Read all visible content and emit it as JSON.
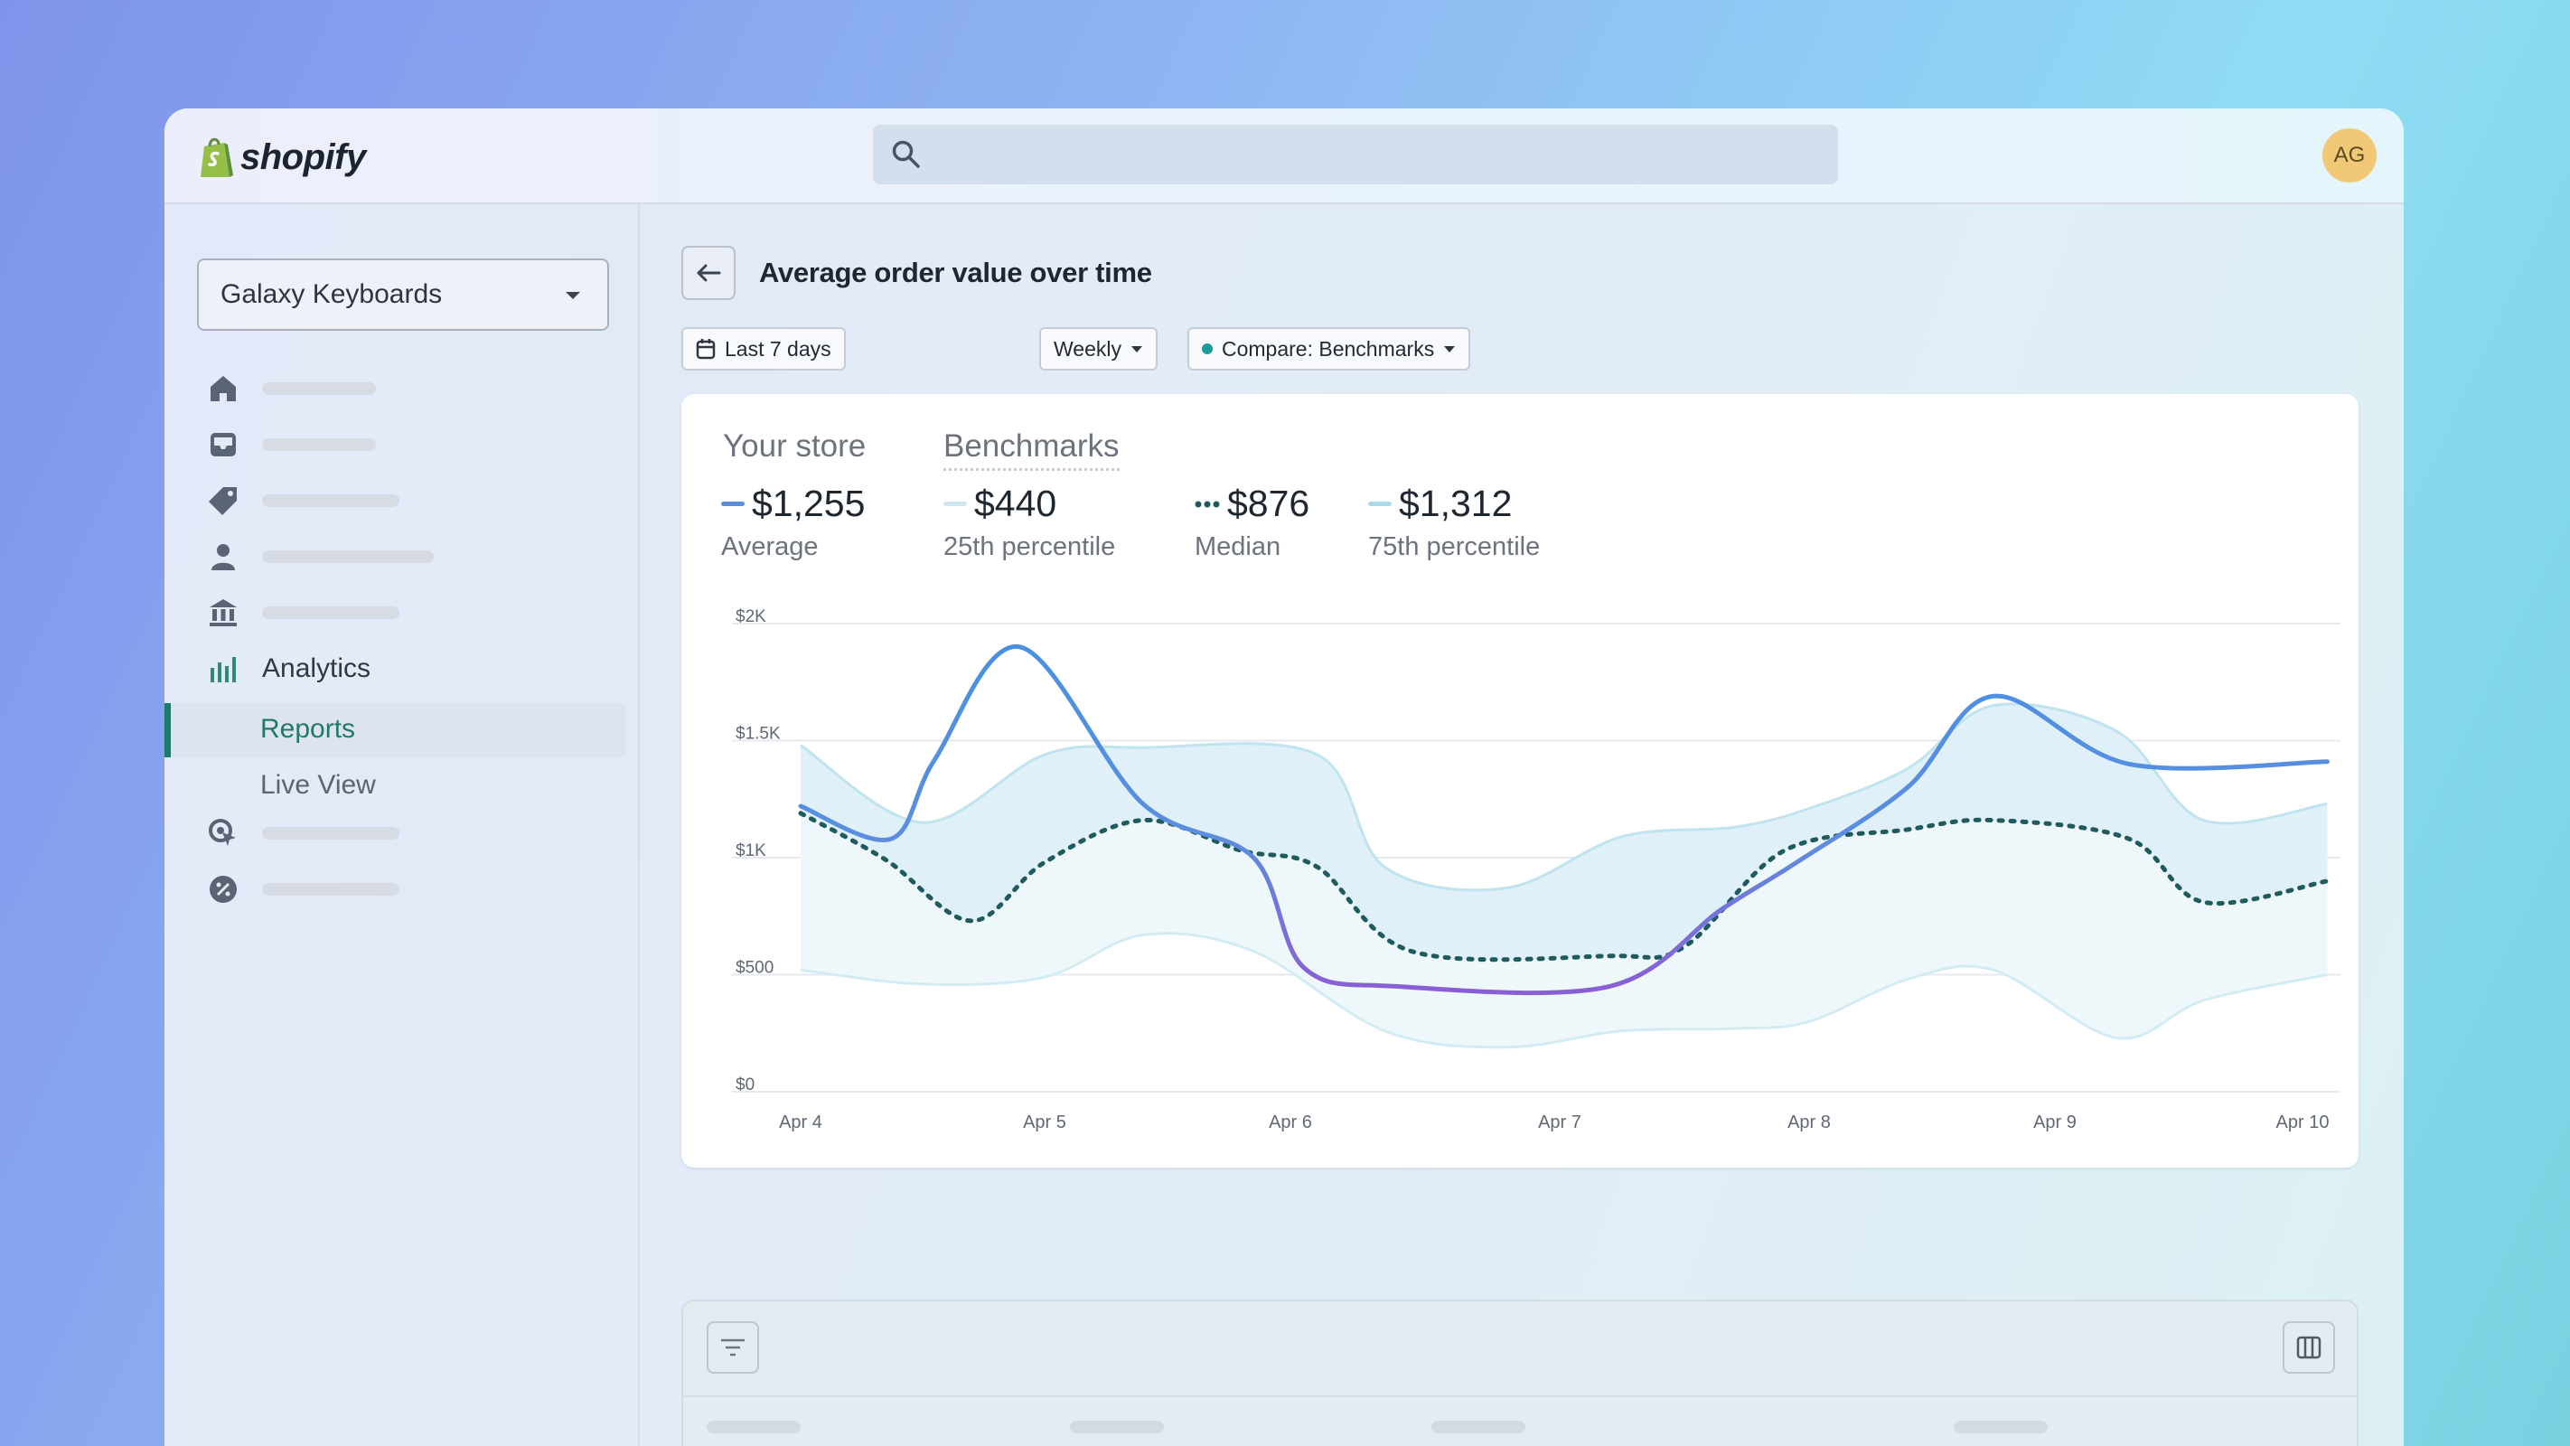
{
  "app": {
    "brand": "shopify",
    "avatar_initials": "AG",
    "search_placeholder": ""
  },
  "sidebar": {
    "store_name": "Galaxy Keyboards",
    "items": [
      {
        "icon": "home-icon"
      },
      {
        "icon": "inbox-icon"
      },
      {
        "icon": "tag-icon"
      },
      {
        "icon": "person-icon"
      },
      {
        "icon": "bank-icon"
      },
      {
        "icon": "analytics-icon",
        "label": "Analytics"
      },
      {
        "label": "Reports",
        "active": true
      },
      {
        "label": "Live View"
      },
      {
        "icon": "marketing-icon"
      },
      {
        "icon": "discount-icon"
      }
    ]
  },
  "page": {
    "title": "Average order value over time"
  },
  "filters": {
    "date_range": "Last 7 days",
    "interval": "Weekly",
    "compare": "Compare: Benchmarks"
  },
  "tabs": {
    "store": "Your store",
    "benchmarks": "Benchmarks"
  },
  "metrics": [
    {
      "value": "$1,255",
      "label": "Average",
      "color": "#5b8ee0"
    },
    {
      "value": "$440",
      "label": "25th percentile",
      "color": "#cde6f2"
    },
    {
      "value": "$876",
      "label": "Median",
      "color": "#1f5a5e"
    },
    {
      "value": "$1,312",
      "label": "75th percentile",
      "color": "#a9dbeb"
    }
  ],
  "colors": {
    "accent": "#1f7a6b",
    "store_line": "#5b8ee0",
    "store_line_low": "#8a6ad8",
    "median": "#1f5a5e",
    "band_inner": "#dff0f8",
    "band_outer": "#eef8fb"
  },
  "chart_data": {
    "type": "line",
    "x": [
      "Apr 4",
      "Apr 5",
      "Apr 6",
      "Apr 7",
      "Apr 8",
      "Apr 9",
      "Apr 10"
    ],
    "y_ticks": [
      "$2K",
      "$1.5K",
      "$1K",
      "$500",
      "$0"
    ],
    "ylim": [
      0,
      2000
    ],
    "series": [
      {
        "name": "Average",
        "points": [
          [
            0,
            1220
          ],
          [
            0.37,
            1080
          ],
          [
            0.55,
            1420
          ],
          [
            0.9,
            1900
          ],
          [
            1.4,
            1230
          ],
          [
            1.85,
            1000
          ],
          [
            2.05,
            530
          ],
          [
            2.4,
            450
          ],
          [
            3.2,
            450
          ],
          [
            3.65,
            780
          ],
          [
            3.95,
            980
          ],
          [
            4.4,
            1300
          ],
          [
            4.75,
            1690
          ],
          [
            5.3,
            1400
          ],
          [
            6.1,
            1410
          ]
        ]
      },
      {
        "name": "Median",
        "points": [
          [
            0,
            1190
          ],
          [
            0.35,
            990
          ],
          [
            0.7,
            730
          ],
          [
            1.0,
            980
          ],
          [
            1.4,
            1160
          ],
          [
            1.8,
            1030
          ],
          [
            2.1,
            960
          ],
          [
            2.45,
            600
          ],
          [
            3.2,
            580
          ],
          [
            3.5,
            620
          ],
          [
            3.9,
            1030
          ],
          [
            4.4,
            1120
          ],
          [
            4.75,
            1160
          ],
          [
            5.3,
            1080
          ],
          [
            5.6,
            810
          ],
          [
            6.1,
            900
          ]
        ]
      },
      {
        "name": "75th percentile",
        "points": [
          [
            0,
            1480
          ],
          [
            0.5,
            1150
          ],
          [
            1.0,
            1440
          ],
          [
            1.4,
            1470
          ],
          [
            2.1,
            1440
          ],
          [
            2.35,
            960
          ],
          [
            2.8,
            870
          ],
          [
            3.25,
            1090
          ],
          [
            3.7,
            1130
          ],
          [
            4.0,
            1210
          ],
          [
            4.4,
            1380
          ],
          [
            4.75,
            1650
          ],
          [
            5.25,
            1540
          ],
          [
            5.6,
            1160
          ],
          [
            6.1,
            1230
          ]
        ]
      },
      {
        "name": "25th percentile",
        "points": [
          [
            0,
            520
          ],
          [
            0.5,
            460
          ],
          [
            1.0,
            490
          ],
          [
            1.4,
            670
          ],
          [
            1.85,
            600
          ],
          [
            2.35,
            260
          ],
          [
            2.8,
            190
          ],
          [
            3.25,
            260
          ],
          [
            3.7,
            270
          ],
          [
            4.0,
            300
          ],
          [
            4.4,
            480
          ],
          [
            4.75,
            520
          ],
          [
            5.25,
            230
          ],
          [
            5.6,
            390
          ],
          [
            6.1,
            500
          ]
        ]
      }
    ]
  }
}
